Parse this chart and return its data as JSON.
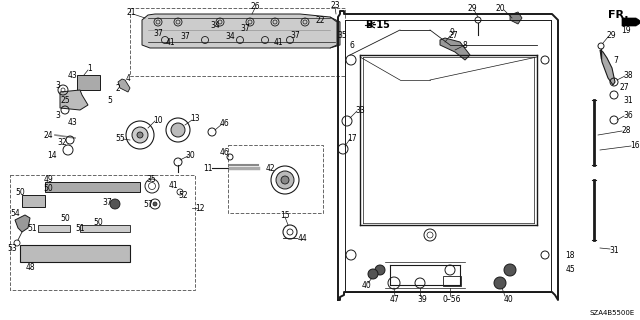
{
  "bg_color": "#ffffff",
  "line_color": "#1a1a1a",
  "text_color": "#000000",
  "fs": 5.5,
  "fs_bold": 6.5,
  "diagram_note": "SZA4B5500E",
  "b15_label": "B-15",
  "fr_label": "FR.",
  "figsize": [
    6.4,
    3.2
  ],
  "dpi": 100
}
